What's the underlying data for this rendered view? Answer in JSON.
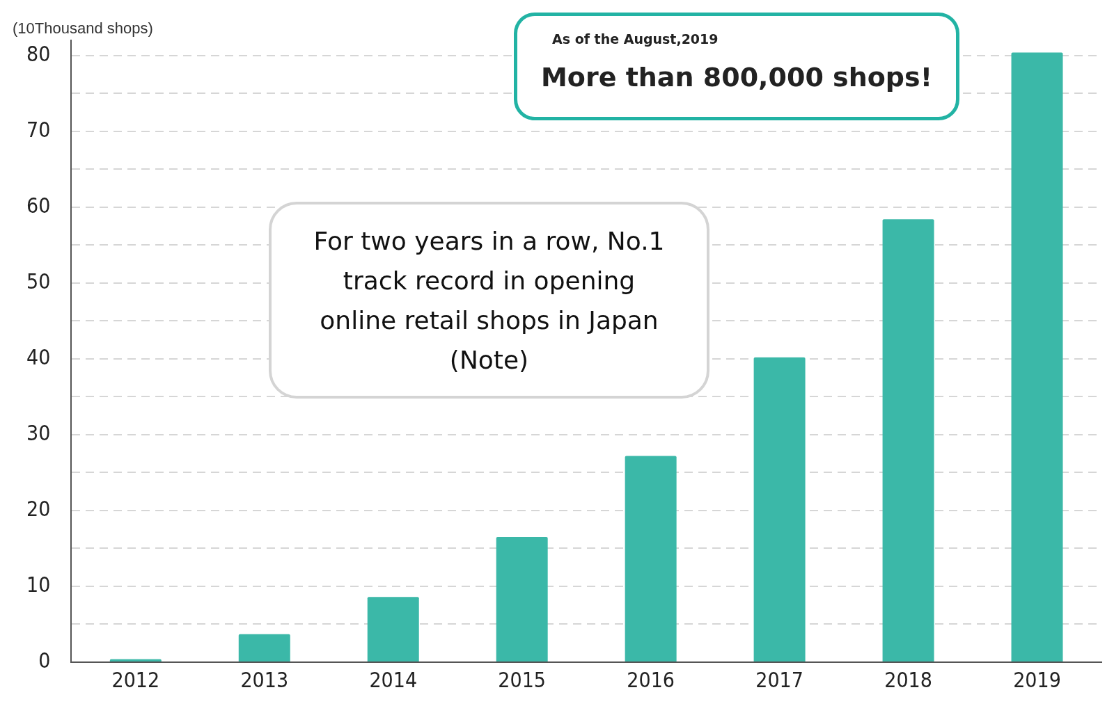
{
  "chart_data": {
    "type": "bar",
    "ylabel": "(10Thousand shops)",
    "categories": [
      "2012",
      "2013",
      "2014",
      "2015",
      "2016",
      "2017",
      "2018",
      "2019"
    ],
    "values": [
      0.4,
      3.7,
      8.6,
      16.5,
      27.2,
      40.2,
      58.4,
      80.4
    ],
    "color": "#3bb8a8",
    "ylim": [
      0,
      82
    ],
    "yticks": [
      0,
      {
        "value": 5,
        "label": null
      },
      10,
      {
        "value": 15,
        "label": null
      },
      20,
      {
        "value": 25,
        "label": null
      },
      30,
      {
        "value": 35,
        "label": null
      },
      40,
      {
        "value": 45,
        "label": null
      },
      50,
      {
        "value": 55,
        "label": null
      },
      60,
      {
        "value": 65,
        "label": null
      },
      70,
      {
        "value": 75,
        "label": null
      },
      80
    ],
    "grid": "y",
    "legend": false,
    "annotations": [
      "As of the August,2019",
      "More than 800,000 shops!",
      "For two years in a row, No.1 track record in opening online retail shops in Japan (Note)"
    ]
  }
}
